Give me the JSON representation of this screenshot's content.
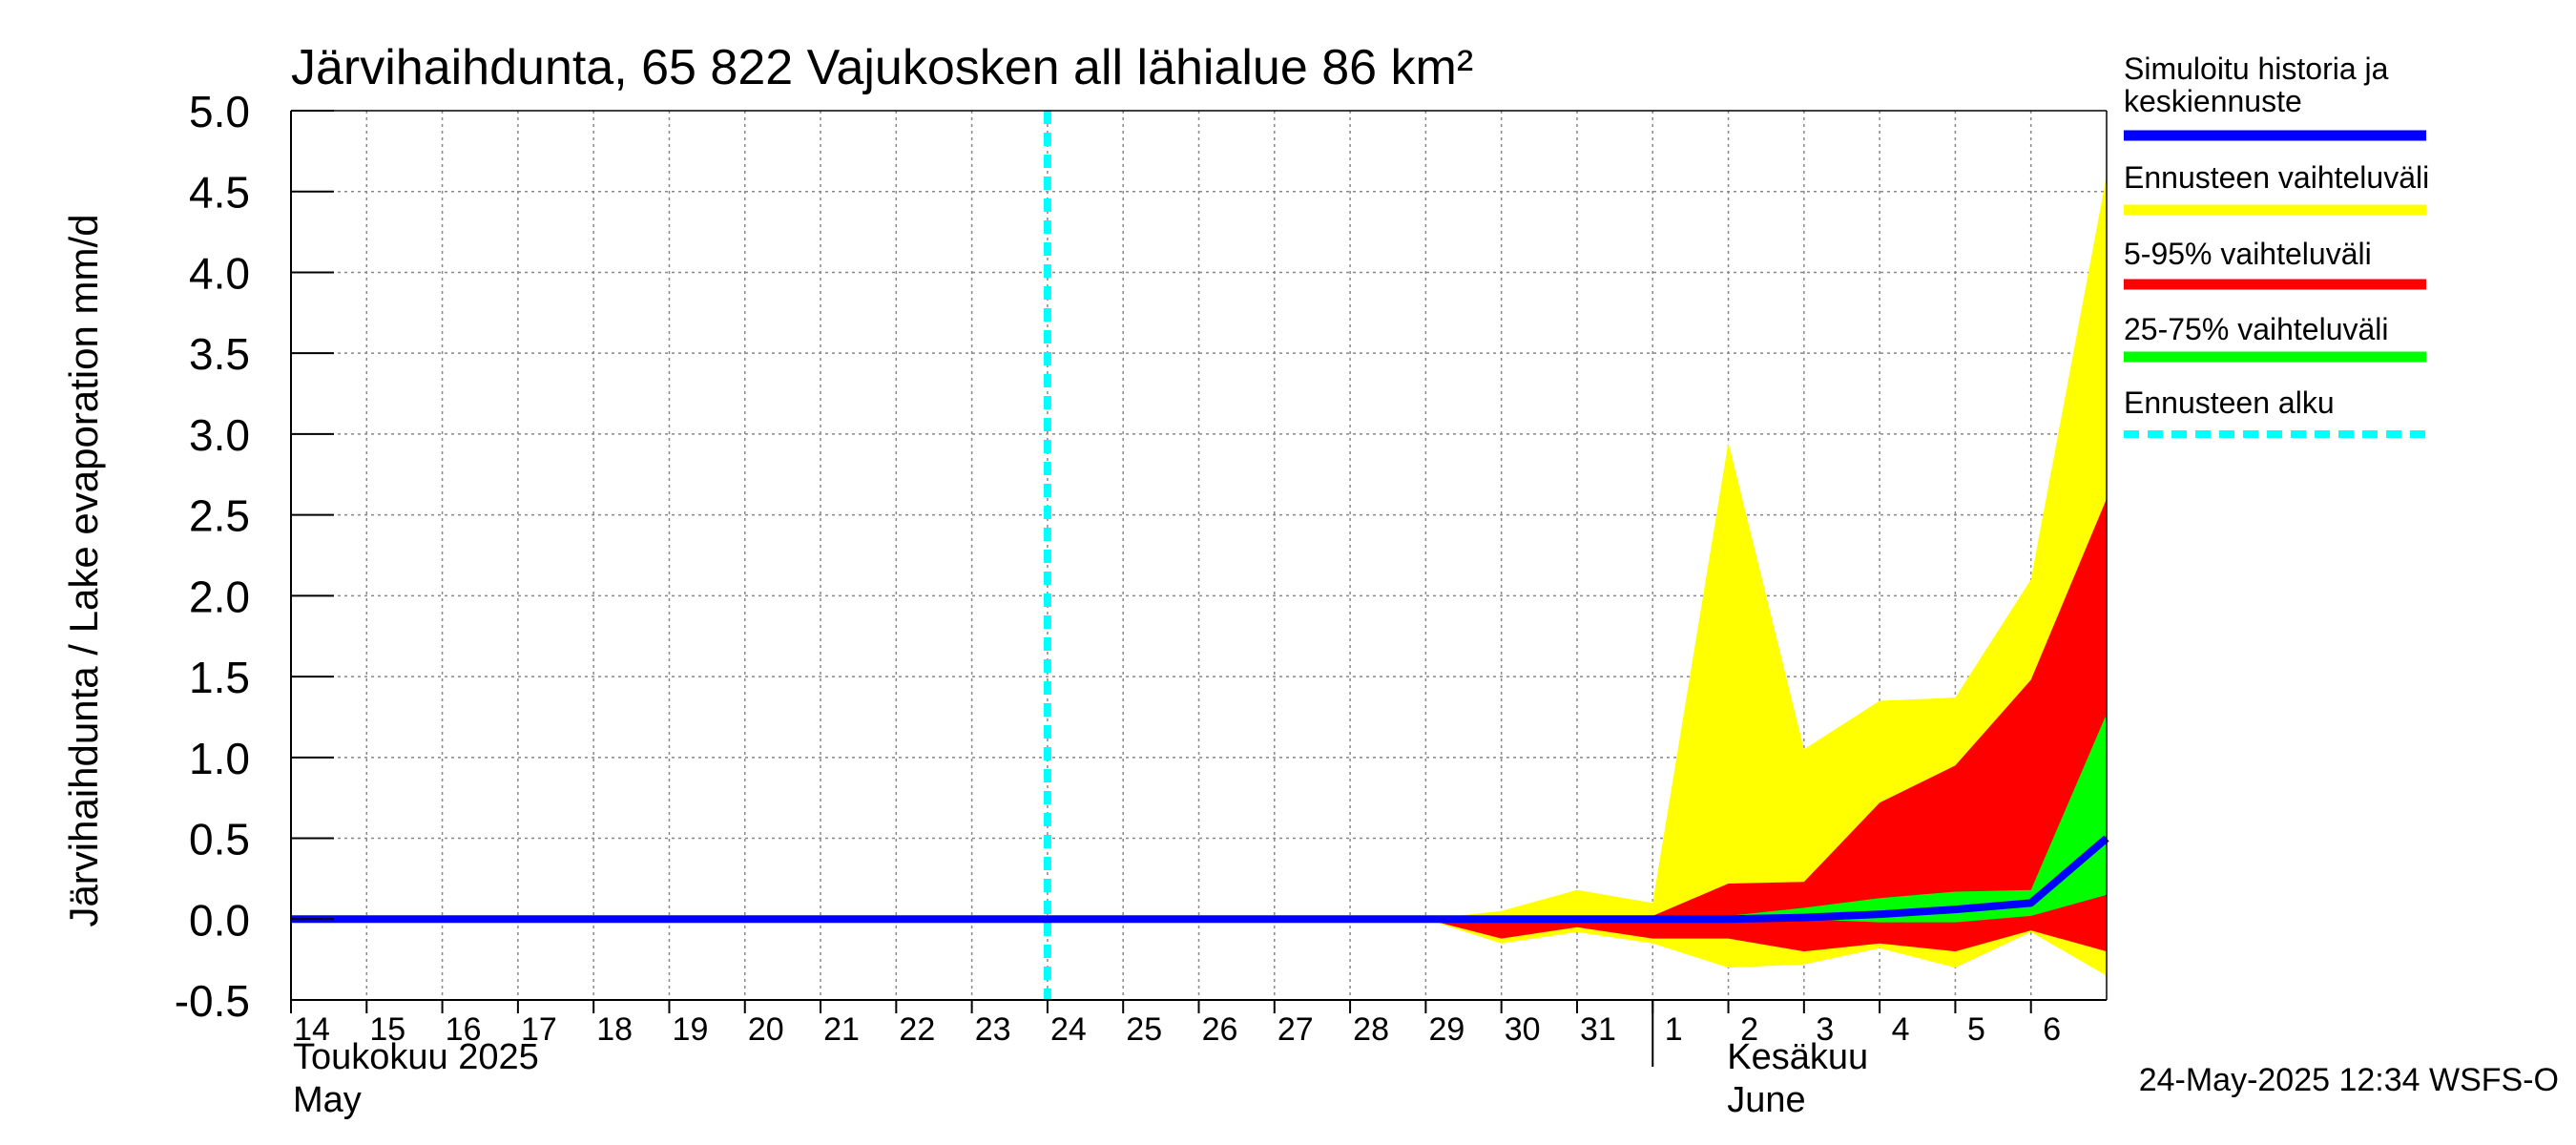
{
  "chart_data": {
    "type": "area",
    "title": "Järvihaihdunta, 65 822 Vajukosken all lähialue 86 km²",
    "ylabel": "Järvihaihdunta / Lake evaporation   mm/d",
    "ylim": [
      -0.5,
      5.0
    ],
    "yticks": [
      "5.0",
      "4.5",
      "4.0",
      "3.5",
      "3.0",
      "2.5",
      "2.0",
      "1.5",
      "1.0",
      "0.5",
      "0.0",
      "-0.5"
    ],
    "ytick_values": [
      5.0,
      4.5,
      4.0,
      3.5,
      3.0,
      2.5,
      2.0,
      1.5,
      1.0,
      0.5,
      0.0,
      -0.5
    ],
    "xlim": [
      0,
      24
    ],
    "day_labels": [
      "14",
      "15",
      "16",
      "17",
      "18",
      "19",
      "20",
      "21",
      "22",
      "23",
      "24",
      "25",
      "26",
      "27",
      "28",
      "29",
      "30",
      "31",
      "1",
      "2",
      "3",
      "4",
      "5",
      "6"
    ],
    "month_labels": [
      {
        "fi": "Toukokuu  2025",
        "en": "May",
        "start_day": 0
      },
      {
        "fi": "Kesäkuu",
        "en": "June",
        "start_day": 18
      }
    ],
    "grid": true,
    "forecast_start_day": 10,
    "bands": {
      "x": [
        15,
        16,
        17,
        18,
        19,
        20,
        21,
        22,
        23,
        24
      ],
      "range_lower": [
        0.0,
        -0.15,
        -0.08,
        -0.15,
        -0.3,
        -0.28,
        -0.18,
        -0.3,
        -0.08,
        -0.35
      ],
      "range_upper": [
        0.0,
        0.05,
        0.18,
        0.1,
        2.95,
        1.05,
        1.35,
        1.37,
        2.1,
        4.6
      ],
      "p5_95_lower": [
        0.0,
        -0.12,
        -0.05,
        -0.12,
        -0.12,
        -0.2,
        -0.15,
        -0.2,
        -0.07,
        -0.2
      ],
      "p5_95_upper": [
        0.0,
        0.01,
        0.02,
        0.02,
        0.22,
        0.23,
        0.72,
        0.95,
        1.48,
        2.6
      ],
      "p25_75_lower": [
        0.0,
        0.0,
        0.0,
        0.0,
        0.0,
        0.0,
        -0.02,
        -0.02,
        0.02,
        0.15
      ],
      "p25_75_upper": [
        0.0,
        0.0,
        0.0,
        0.0,
        0.02,
        0.07,
        0.13,
        0.17,
        0.18,
        1.27
      ]
    },
    "series": [
      {
        "name": "Simuloitu historia ja keskiennuste",
        "x": [
          0,
          1,
          2,
          3,
          4,
          5,
          6,
          7,
          8,
          9,
          10,
          11,
          12,
          13,
          14,
          15,
          16,
          17,
          18,
          19,
          20,
          21,
          22,
          23,
          24
        ],
        "values": [
          0,
          0,
          0,
          0,
          0,
          0,
          0,
          0,
          0,
          0,
          0,
          0,
          0,
          0,
          0,
          0,
          0,
          0,
          0,
          0.0,
          0.01,
          0.03,
          0.06,
          0.1,
          0.5
        ]
      }
    ],
    "legend": [
      {
        "label": "Simuloitu historia ja\nkeskiennuste",
        "color": "#0000ff",
        "style": "solid"
      },
      {
        "label": "Ennusteen vaihteluväli",
        "color": "#ffff00",
        "style": "solid"
      },
      {
        "label": "5-95% vaihteluväli",
        "color": "#ff0000",
        "style": "solid"
      },
      {
        "label": "25-75% vaihteluväli",
        "color": "#00ff00",
        "style": "solid"
      },
      {
        "label": "Ennusteen alku",
        "color": "#00ffff",
        "style": "dashed"
      }
    ],
    "legend_position": "right",
    "colors": {
      "range": "#ffff00",
      "p5_95": "#ff0000",
      "p25_75": "#00ff00",
      "median": "#0000ff",
      "forecast_start": "#00ffff",
      "grid": "#888888"
    },
    "footer": "24-May-2025 12:34 WSFS-O"
  }
}
